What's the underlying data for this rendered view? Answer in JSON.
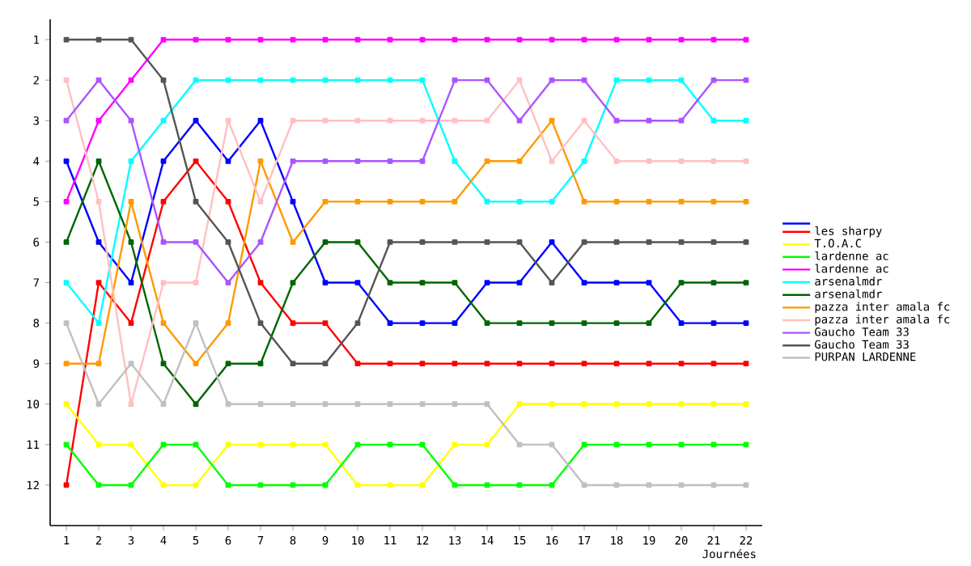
{
  "chart_data": {
    "type": "line",
    "xlabel": "Journées",
    "x": [
      1,
      2,
      3,
      4,
      5,
      6,
      7,
      8,
      9,
      10,
      11,
      12,
      13,
      14,
      15,
      16,
      17,
      18,
      19,
      20,
      21,
      22
    ],
    "xlim": [
      0.5,
      22.5
    ],
    "xticks": [
      1,
      2,
      3,
      4,
      5,
      6,
      7,
      8,
      9,
      10,
      11,
      12,
      13,
      14,
      15,
      16,
      17,
      18,
      19,
      20,
      21,
      22
    ],
    "ylim": [
      13,
      0.5
    ],
    "yticks": [
      1,
      2,
      3,
      4,
      5,
      6,
      7,
      8,
      9,
      10,
      11,
      12
    ],
    "marker": "square",
    "line_style": "solid",
    "legend": "right",
    "series": [
      {
        "color": "#0000ff",
        "values": [
          4,
          6,
          7,
          4,
          3,
          4,
          3,
          5,
          7,
          7,
          8,
          8,
          8,
          7,
          7,
          6,
          7,
          7,
          7,
          8,
          8,
          8
        ]
      },
      {
        "name": "les sharpy",
        "color": "#ff0000",
        "values": [
          12,
          7,
          8,
          5,
          4,
          5,
          7,
          8,
          8,
          9,
          9,
          9,
          9,
          9,
          9,
          9,
          9,
          9,
          9,
          9,
          9,
          9
        ]
      },
      {
        "name": "T.O.A.C",
        "color": "#ffff00",
        "values": [
          10,
          11,
          11,
          12,
          12,
          11,
          11,
          11,
          11,
          12,
          12,
          12,
          11,
          11,
          10,
          10,
          10,
          10,
          10,
          10,
          10,
          10
        ]
      },
      {
        "name": "lardenne ac",
        "color": "#00ff00",
        "values": [
          11,
          12,
          12,
          11,
          11,
          12,
          12,
          12,
          12,
          11,
          11,
          11,
          12,
          12,
          12,
          12,
          11,
          11,
          11,
          11,
          11,
          11
        ]
      },
      {
        "name": "lardenne ac",
        "color": "#ff00ff",
        "values": [
          5,
          3,
          2,
          1,
          1,
          1,
          1,
          1,
          1,
          1,
          1,
          1,
          1,
          1,
          1,
          1,
          1,
          1,
          1,
          1,
          1,
          1
        ]
      },
      {
        "name": "arsenalmdr",
        "color": "#00ffff",
        "values": [
          7,
          8,
          4,
          3,
          2,
          2,
          2,
          2,
          2,
          2,
          2,
          2,
          4,
          5,
          5,
          5,
          4,
          2,
          2,
          2,
          3,
          3
        ]
      },
      {
        "name": "arsenalmdr",
        "color": "#006600",
        "values": [
          6,
          4,
          6,
          9,
          10,
          9,
          9,
          7,
          6,
          6,
          7,
          7,
          7,
          8,
          8,
          8,
          8,
          8,
          8,
          7,
          7,
          7
        ]
      },
      {
        "name": "pazza inter amala fc",
        "color": "#ff9900",
        "values": [
          9,
          9,
          5,
          8,
          9,
          8,
          4,
          6,
          5,
          5,
          5,
          5,
          5,
          4,
          4,
          3,
          5,
          5,
          5,
          5,
          5,
          5
        ]
      },
      {
        "name": "pazza inter amala fc",
        "color": "#ffc0c0",
        "values": [
          2,
          5,
          10,
          7,
          7,
          3,
          5,
          3,
          3,
          3,
          3,
          3,
          3,
          3,
          2,
          4,
          3,
          4,
          4,
          4,
          4,
          4
        ]
      },
      {
        "name": "Gaucho Team 33",
        "color": "#aa55ff",
        "values": [
          3,
          2,
          3,
          6,
          6,
          7,
          6,
          4,
          4,
          4,
          4,
          4,
          2,
          2,
          3,
          2,
          2,
          3,
          3,
          3,
          2,
          2
        ]
      },
      {
        "name": "Gaucho Team 33",
        "color": "#555555",
        "values": [
          1,
          1,
          1,
          2,
          5,
          6,
          8,
          9,
          9,
          8,
          6,
          6,
          6,
          6,
          6,
          7,
          6,
          6,
          6,
          6,
          6,
          6
        ]
      },
      {
        "name": "PURPAN LARDENNE",
        "color": "#c0c0c0",
        "values": [
          8,
          10,
          9,
          10,
          8,
          10,
          10,
          10,
          10,
          10,
          10,
          10,
          10,
          10,
          11,
          11,
          12,
          12,
          12,
          12,
          12,
          12
        ]
      }
    ]
  }
}
